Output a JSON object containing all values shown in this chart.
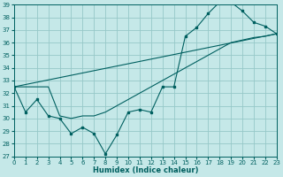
{
  "xlabel": "Humidex (Indice chaleur)",
  "xlim": [
    0,
    23
  ],
  "ylim": [
    27,
    39
  ],
  "yticks": [
    27,
    28,
    29,
    30,
    31,
    32,
    33,
    34,
    35,
    36,
    37,
    38,
    39
  ],
  "xticks": [
    0,
    1,
    2,
    3,
    4,
    5,
    6,
    7,
    8,
    9,
    10,
    11,
    12,
    13,
    14,
    15,
    16,
    17,
    18,
    19,
    20,
    21,
    22,
    23
  ],
  "bg_color": "#c5e8e8",
  "grid_color": "#96c8c8",
  "line_color": "#006060",
  "line1_y": [
    32.5,
    30.5,
    31.5,
    30.2,
    30.0,
    28.8,
    29.3,
    28.8,
    27.2,
    28.7,
    30.5,
    30.7,
    30.5,
    32.5,
    32.5,
    36.5,
    37.2,
    38.3,
    39.2,
    39.2,
    38.5,
    37.6,
    37.3,
    36.7
  ],
  "line2_y": [
    32.5,
    32.5,
    32.5,
    32.5,
    30.2,
    30.0,
    30.2,
    30.2,
    30.5,
    31.0,
    31.5,
    32.0,
    32.5,
    33.0,
    33.5,
    34.0,
    34.5,
    35.0,
    35.5,
    36.0,
    36.2,
    36.4,
    36.5,
    36.7
  ],
  "line3_y": [
    32.5,
    36.7
  ],
  "line3_x": [
    0,
    23
  ]
}
